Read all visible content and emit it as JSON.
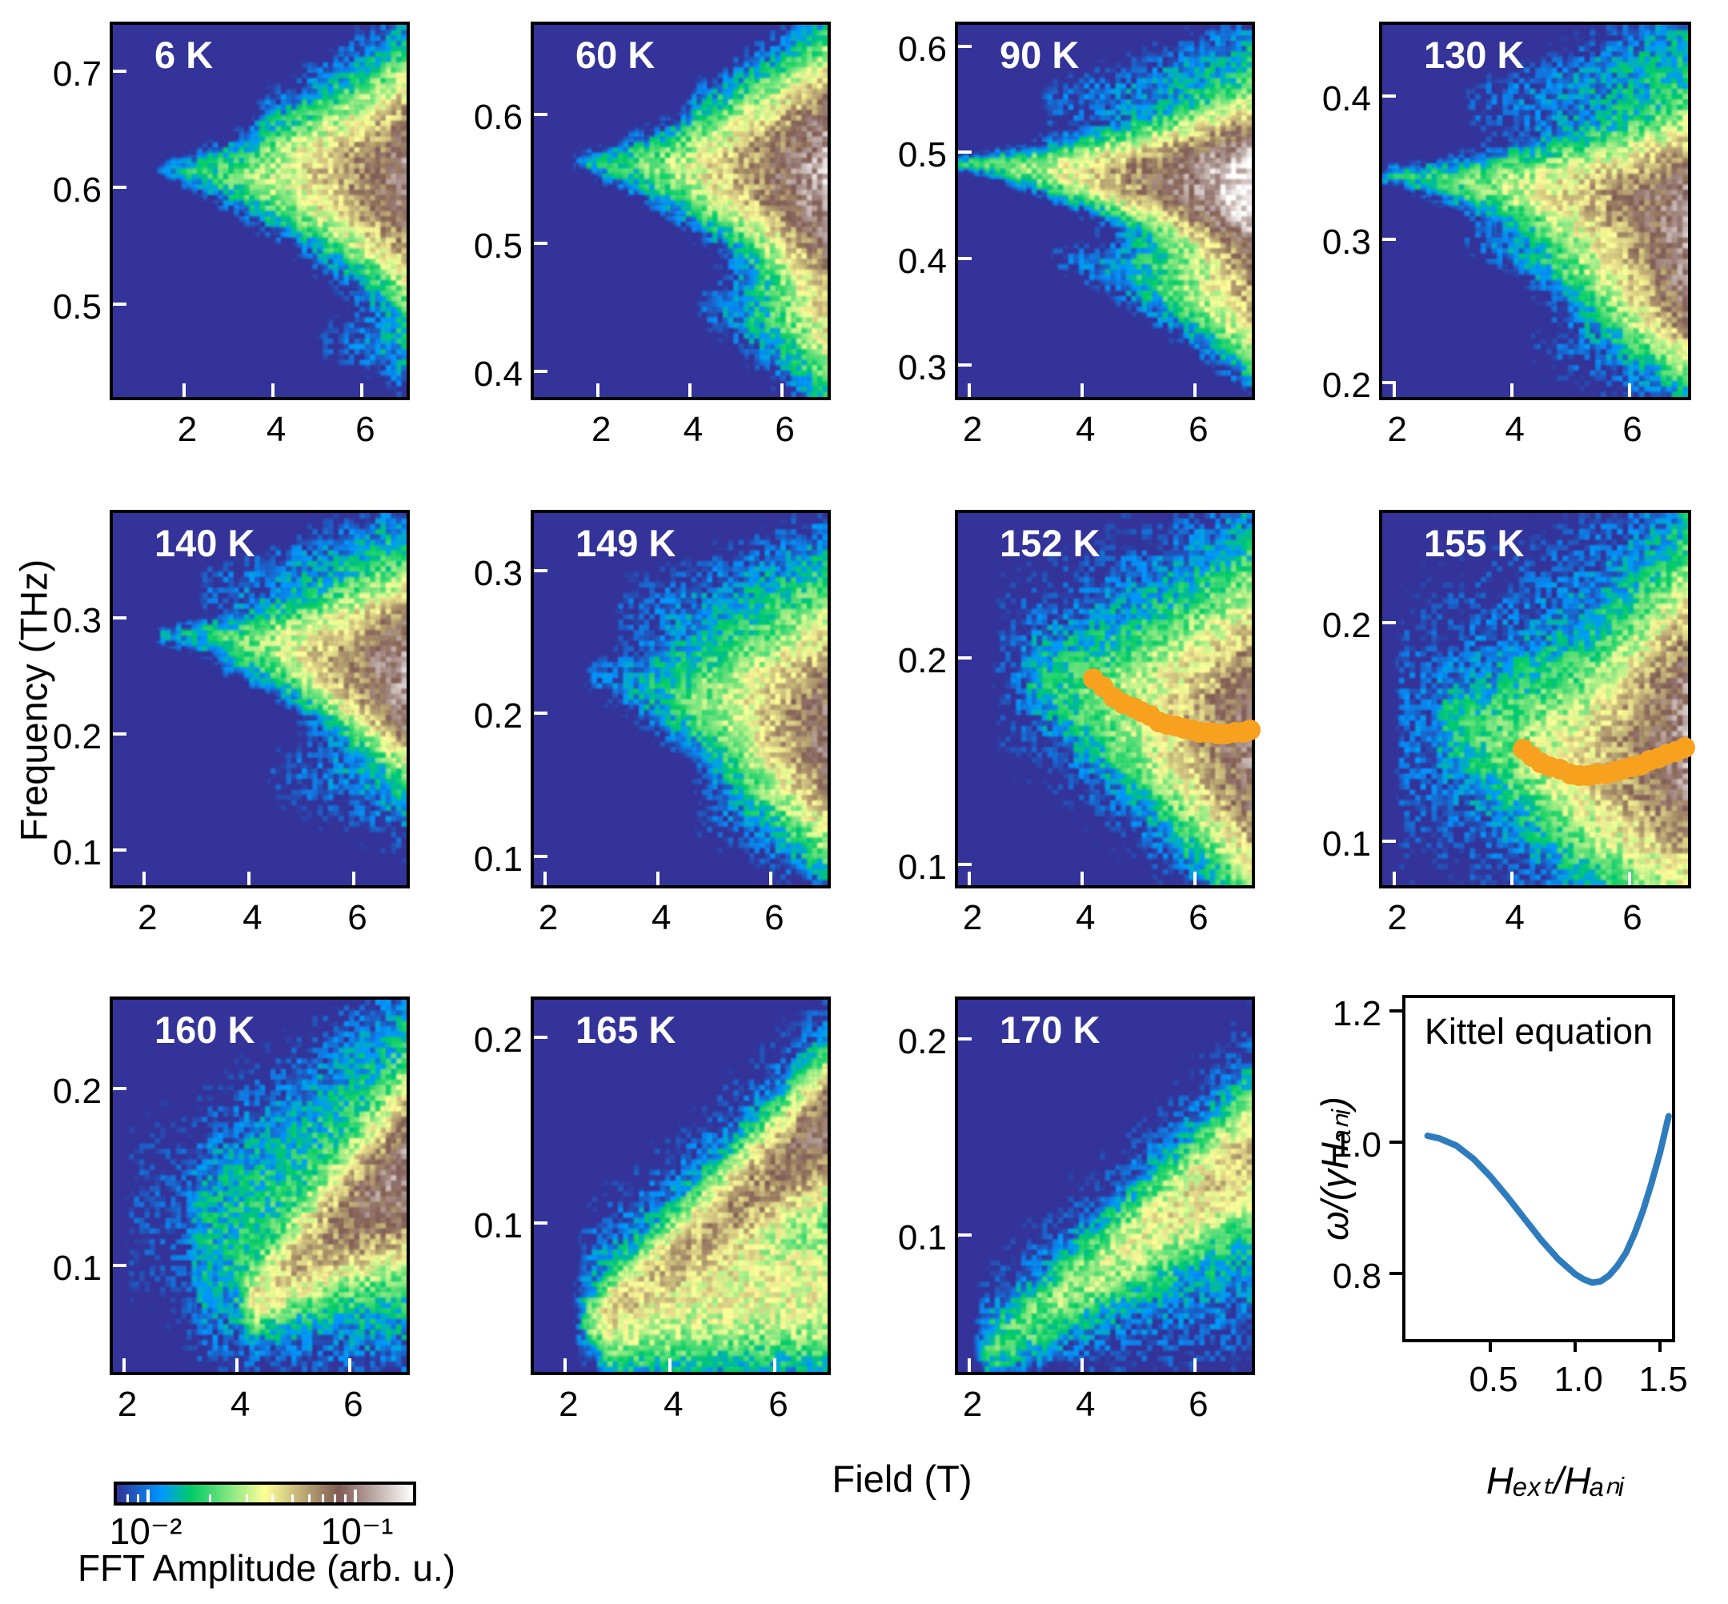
{
  "figure": {
    "description": "Field-frequency FFT amplitude maps at eleven temperatures plus Kittel equation model curve"
  },
  "axes": {
    "xlabel": "Field (T)",
    "ylabel": "Frequency (THz)",
    "x_ticks": [
      2,
      4,
      6
    ]
  },
  "kittel": {
    "xlabel": "Hₑₓₜ/Hₐₙᵢ",
    "ylabel": "ω/(γHₐₙᵢ)",
    "title": "Kittel equation"
  },
  "colorbar": {
    "caption": "FFT Amplitude (arb. u.)",
    "min_label": "10⁻²",
    "max_label": "10⁻¹",
    "log_range": [
      -2.15,
      -0.72
    ],
    "major_ticks": [
      0.01,
      0.1
    ],
    "minor_ticks": [
      0.008,
      0.009,
      0.02,
      0.03,
      0.04,
      0.05,
      0.06,
      0.07,
      0.08,
      0.09
    ],
    "gradient_stops": [
      {
        "t": 0.0,
        "color": "#333399"
      },
      {
        "t": 0.15,
        "color": "#0099ff"
      },
      {
        "t": 0.25,
        "color": "#00cc66"
      },
      {
        "t": 0.5,
        "color": "#ffff99"
      },
      {
        "t": 0.75,
        "color": "#805c54"
      },
      {
        "t": 1.0,
        "color": "#ffffff"
      }
    ]
  },
  "colors": {
    "background": "#333399",
    "dot": "#f7a11e",
    "kittel_curve": "#2e7cbe",
    "frame": "#000000",
    "panel_title": "#ffffff"
  },
  "chart_data": [
    {
      "type": "heatmap",
      "label": "6 K",
      "x_range": [
        0.4,
        7.0
      ],
      "y_range": [
        0.42,
        0.74
      ],
      "x_ticks": [
        2,
        4,
        6
      ],
      "y_ticks": [
        0.5,
        0.6,
        0.7
      ],
      "ridges": [
        {
          "pts": [
            [
              1.6,
              0.615
            ],
            [
              7.0,
              0.602
            ]
          ],
          "w": [
            0.006,
            0.052
          ],
          "la": [
            -2.05,
            -1.02
          ]
        },
        {
          "pts": [
            [
              3.8,
              0.655
            ],
            [
              7.0,
              0.67
            ]
          ],
          "w": [
            0.025,
            0.055
          ],
          "la": [
            -2.35,
            -2.0
          ]
        },
        {
          "pts": [
            [
              5.2,
              0.468
            ],
            [
              7.0,
              0.462
            ]
          ],
          "w": [
            0.014,
            0.03
          ],
          "la": [
            -2.4,
            -2.1
          ]
        }
      ]
    },
    {
      "type": "heatmap",
      "label": "60 K",
      "x_range": [
        0.6,
        7.0
      ],
      "y_range": [
        0.38,
        0.67
      ],
      "x_ticks": [
        2,
        4,
        6
      ],
      "y_ticks": [
        0.4,
        0.5,
        0.6
      ],
      "ridges": [
        {
          "pts": [
            [
              1.7,
              0.563
            ],
            [
              7.0,
              0.55
            ]
          ],
          "w": [
            0.006,
            0.048
          ],
          "la": [
            -2.05,
            -0.88
          ]
        },
        {
          "pts": [
            [
              4.2,
              0.6
            ],
            [
              7.0,
              0.615
            ]
          ],
          "w": [
            0.02,
            0.045
          ],
          "la": [
            -2.35,
            -2.0
          ]
        },
        {
          "pts": [
            [
              4.3,
              0.45
            ],
            [
              7.0,
              0.44
            ]
          ],
          "w": [
            0.015,
            0.042
          ],
          "la": [
            -2.35,
            -1.5
          ]
        }
      ]
    },
    {
      "type": "heatmap",
      "label": "90 K",
      "x_range": [
        1.8,
        7.0
      ],
      "y_range": [
        0.27,
        0.62
      ],
      "x_ticks": [
        2,
        4,
        6
      ],
      "y_ticks": [
        0.3,
        0.4,
        0.5,
        0.6
      ],
      "ridges": [
        {
          "pts": [
            [
              1.95,
              0.49
            ],
            [
              7.0,
              0.468
            ]
          ],
          "w": [
            0.005,
            0.038
          ],
          "la": [
            -1.9,
            -0.72
          ]
        },
        {
          "pts": [
            [
              3.4,
              0.545
            ],
            [
              7.0,
              0.575
            ]
          ],
          "w": [
            0.018,
            0.04
          ],
          "la": [
            -2.35,
            -2.0
          ]
        },
        {
          "pts": [
            [
              3.6,
              0.4
            ],
            [
              7.0,
              0.365
            ]
          ],
          "w": [
            0.012,
            0.042
          ],
          "la": [
            -2.4,
            -1.3
          ]
        }
      ]
    },
    {
      "type": "heatmap",
      "label": "130 K",
      "x_range": [
        1.8,
        7.0
      ],
      "y_range": [
        0.19,
        0.45
      ],
      "x_ticks": [
        2,
        4,
        6
      ],
      "y_ticks": [
        0.2,
        0.3,
        0.4
      ],
      "ridges": [
        {
          "pts": [
            [
              1.95,
              0.345
            ],
            [
              7.0,
              0.323
            ]
          ],
          "w": [
            0.005,
            0.032
          ],
          "la": [
            -2.0,
            -1.0
          ]
        },
        {
          "pts": [
            [
              3.4,
              0.395
            ],
            [
              7.0,
              0.415
            ]
          ],
          "w": [
            0.016,
            0.04
          ],
          "la": [
            -2.35,
            -1.95
          ]
        },
        {
          "pts": [
            [
              3.3,
              0.3
            ],
            [
              7.0,
              0.262
            ]
          ],
          "w": [
            0.01,
            0.03
          ],
          "la": [
            -2.4,
            -1.15
          ]
        },
        {
          "pts": [
            [
              4.5,
              0.225
            ],
            [
              7.0,
              0.23
            ]
          ],
          "w": [
            0.02,
            0.04
          ],
          "la": [
            -2.45,
            -2.0
          ]
        }
      ]
    },
    {
      "type": "heatmap",
      "label": "140 K",
      "x_range": [
        1.4,
        7.0
      ],
      "y_range": [
        0.07,
        0.39
      ],
      "x_ticks": [
        2,
        4,
        6
      ],
      "y_ticks": [
        0.1,
        0.2,
        0.3
      ],
      "ridges": [
        {
          "pts": [
            [
              2.4,
              0.285
            ],
            [
              7.0,
              0.272
            ]
          ],
          "w": [
            0.006,
            0.032
          ],
          "la": [
            -2.1,
            -1.05
          ]
        },
        {
          "pts": [
            [
              3.2,
              0.325
            ],
            [
              7.0,
              0.345
            ]
          ],
          "w": [
            0.018,
            0.038
          ],
          "la": [
            -2.35,
            -1.9
          ]
        },
        {
          "pts": [
            [
              3.6,
              0.26
            ],
            [
              7.0,
              0.224
            ]
          ],
          "w": [
            0.009,
            0.028
          ],
          "la": [
            -2.4,
            -1.1
          ]
        },
        {
          "pts": [
            [
              4.5,
              0.16
            ],
            [
              7.0,
              0.18
            ]
          ],
          "w": [
            0.025,
            0.05
          ],
          "la": [
            -2.45,
            -1.95
          ]
        }
      ]
    },
    {
      "type": "heatmap",
      "label": "149 K",
      "x_range": [
        1.8,
        7.0
      ],
      "y_range": [
        0.08,
        0.34
      ],
      "x_ticks": [
        2,
        4,
        6
      ],
      "y_ticks": [
        0.1,
        0.2,
        0.3
      ],
      "ridges": [
        {
          "pts": [
            [
              2.9,
              0.225
            ],
            [
              6.9,
              0.188
            ]
          ],
          "w": [
            0.012,
            0.042
          ],
          "la": [
            -2.3,
            -1.1
          ]
        },
        {
          "pts": [
            [
              3.4,
              0.27
            ],
            [
              7.0,
              0.268
            ]
          ],
          "w": [
            0.022,
            0.045
          ],
          "la": [
            -2.4,
            -1.85
          ]
        },
        {
          "pts": [
            [
              4.8,
              0.13
            ],
            [
              7.0,
              0.142
            ]
          ],
          "w": [
            0.02,
            0.04
          ],
          "la": [
            -2.45,
            -1.9
          ]
        }
      ]
    },
    {
      "type": "heatmap",
      "label": "152 K",
      "x_range": [
        1.8,
        7.0
      ],
      "y_range": [
        0.09,
        0.27
      ],
      "x_ticks": [
        2,
        4,
        6
      ],
      "y_ticks": [
        0.1,
        0.2
      ],
      "ridges": [
        {
          "pts": [
            [
              3.2,
              0.19
            ],
            [
              5.5,
              0.168
            ],
            [
              7.0,
              0.158
            ]
          ],
          "w": [
            0.014,
            0.038
          ],
          "la": [
            -2.25,
            -1.05
          ]
        },
        {
          "pts": [
            [
              2.6,
              0.195
            ],
            [
              7.0,
              0.185
            ]
          ],
          "w": [
            0.04,
            0.062
          ],
          "la": [
            -2.4,
            -1.8
          ]
        }
      ],
      "dots": [
        [
          4.2,
          0.19
        ],
        [
          4.37,
          0.186
        ],
        [
          4.55,
          0.181
        ],
        [
          4.72,
          0.178
        ],
        [
          4.9,
          0.176
        ],
        [
          5.05,
          0.174
        ],
        [
          5.2,
          0.172
        ],
        [
          5.35,
          0.169
        ],
        [
          5.5,
          0.168
        ],
        [
          5.65,
          0.167
        ],
        [
          5.8,
          0.166
        ],
        [
          5.95,
          0.165
        ],
        [
          6.1,
          0.164
        ],
        [
          6.25,
          0.164
        ],
        [
          6.4,
          0.163
        ],
        [
          6.55,
          0.163
        ],
        [
          6.7,
          0.164
        ],
        [
          6.85,
          0.164
        ],
        [
          6.97,
          0.165
        ]
      ]
    },
    {
      "type": "heatmap",
      "label": "155 K",
      "x_range": [
        1.8,
        7.0
      ],
      "y_range": [
        0.08,
        0.25
      ],
      "x_ticks": [
        2,
        4,
        6
      ],
      "y_ticks": [
        0.1,
        0.2
      ],
      "ridges": [
        {
          "pts": [
            [
              3.0,
              0.152
            ],
            [
              5.2,
              0.134
            ],
            [
              7.0,
              0.147
            ]
          ],
          "w": [
            0.012,
            0.038
          ],
          "la": [
            -2.2,
            -1.0
          ]
        },
        {
          "pts": [
            [
              2.2,
              0.15
            ],
            [
              7.0,
              0.15
            ]
          ],
          "w": [
            0.05,
            0.075
          ],
          "la": [
            -2.3,
            -1.8
          ]
        }
      ],
      "dots": [
        [
          4.19,
          0.142
        ],
        [
          4.35,
          0.139
        ],
        [
          4.5,
          0.136
        ],
        [
          4.65,
          0.134
        ],
        [
          4.82,
          0.133
        ],
        [
          5.0,
          0.131
        ],
        [
          5.15,
          0.13
        ],
        [
          5.3,
          0.13
        ],
        [
          5.45,
          0.131
        ],
        [
          5.6,
          0.131
        ],
        [
          5.75,
          0.132
        ],
        [
          5.9,
          0.133
        ],
        [
          6.05,
          0.134
        ],
        [
          6.2,
          0.135
        ],
        [
          6.35,
          0.137
        ],
        [
          6.5,
          0.138
        ],
        [
          6.65,
          0.14
        ],
        [
          6.8,
          0.141
        ],
        [
          6.95,
          0.143
        ]
      ]
    },
    {
      "type": "heatmap",
      "label": "160 K",
      "x_range": [
        1.8,
        7.0
      ],
      "y_range": [
        0.04,
        0.25
      ],
      "x_ticks": [
        2,
        4,
        6
      ],
      "y_ticks": [
        0.1,
        0.2
      ],
      "ridges": [
        {
          "pts": [
            [
              4.35,
              0.082
            ],
            [
              7.0,
              0.152
            ]
          ],
          "w": [
            0.012,
            0.026
          ],
          "la": [
            -1.6,
            -1.05
          ]
        },
        {
          "pts": [
            [
              3.4,
              0.11
            ],
            [
              7.0,
              0.165
            ]
          ],
          "w": [
            0.04,
            0.065
          ],
          "la": [
            -2.25,
            -1.8
          ]
        },
        {
          "pts": [
            [
              2.2,
              0.13
            ],
            [
              4.0,
              0.12
            ]
          ],
          "w": [
            0.05,
            0.06
          ],
          "la": [
            -2.45,
            -2.3
          ]
        }
      ]
    },
    {
      "type": "heatmap",
      "label": "165 K",
      "x_range": [
        1.4,
        7.0
      ],
      "y_range": [
        0.02,
        0.22
      ],
      "x_ticks": [
        2,
        4,
        6
      ],
      "y_ticks": [
        0.1,
        0.2
      ],
      "ridges": [
        {
          "pts": [
            [
              2.6,
              0.048
            ],
            [
              7.0,
              0.152
            ]
          ],
          "w": [
            0.009,
            0.02
          ],
          "la": [
            -1.75,
            -1.1
          ]
        },
        {
          "pts": [
            [
              2.9,
              0.042
            ],
            [
              4.8,
              0.06
            ]
          ],
          "w": [
            0.016,
            0.024
          ],
          "la": [
            -1.7,
            -1.6
          ]
        },
        {
          "pts": [
            [
              2.4,
              0.06
            ],
            [
              7.0,
              0.125
            ]
          ],
          "w": [
            0.032,
            0.055
          ],
          "la": [
            -2.15,
            -1.85
          ]
        }
      ]
    },
    {
      "type": "heatmap",
      "label": "170 K",
      "x_range": [
        1.8,
        7.0
      ],
      "y_range": [
        0.03,
        0.22
      ],
      "x_ticks": [
        2,
        4,
        6
      ],
      "y_ticks": [
        0.1,
        0.2
      ],
      "ridges": [
        {
          "pts": [
            [
              2.45,
              0.042
            ],
            [
              7.0,
              0.142
            ]
          ],
          "w": [
            0.01,
            0.019
          ],
          "la": [
            -1.95,
            -1.4
          ]
        },
        {
          "pts": [
            [
              2.3,
              0.05
            ],
            [
              7.0,
              0.12
            ]
          ],
          "w": [
            0.028,
            0.055
          ],
          "la": [
            -2.3,
            -1.98
          ]
        }
      ]
    },
    {
      "type": "line",
      "label": "Kittel equation",
      "x_range": [
        0.0,
        1.57
      ],
      "y_range": [
        0.7,
        1.22
      ],
      "x_ticks": [
        0.5,
        1.0,
        1.5
      ],
      "y_ticks": [
        0.8,
        1.0,
        1.2
      ],
      "color": "#2e7cbe",
      "points": [
        [
          0.13,
          1.01
        ],
        [
          0.2,
          1.006
        ],
        [
          0.3,
          0.995
        ],
        [
          0.4,
          0.975
        ],
        [
          0.5,
          0.948
        ],
        [
          0.6,
          0.917
        ],
        [
          0.7,
          0.884
        ],
        [
          0.8,
          0.851
        ],
        [
          0.9,
          0.822
        ],
        [
          1.0,
          0.799
        ],
        [
          1.05,
          0.791
        ],
        [
          1.1,
          0.786
        ],
        [
          1.15,
          0.788
        ],
        [
          1.2,
          0.797
        ],
        [
          1.25,
          0.812
        ],
        [
          1.3,
          0.832
        ],
        [
          1.35,
          0.861
        ],
        [
          1.4,
          0.896
        ],
        [
          1.45,
          0.938
        ],
        [
          1.5,
          0.985
        ],
        [
          1.55,
          1.04
        ]
      ]
    }
  ]
}
